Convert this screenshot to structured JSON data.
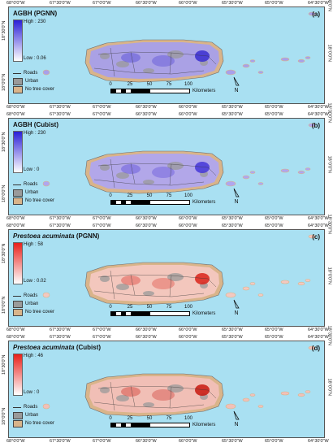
{
  "lon_labels": [
    "68°0'0\"W",
    "67°30'0\"W",
    "67°0'0\"W",
    "66°30'0\"W",
    "66°0'0\"W",
    "65°30'0\"W",
    "65°0'0\"W",
    "64°30'0\"W"
  ],
  "lat_label": "18°30'0\"N",
  "lat_label_2": "18°0'0\"N",
  "legend": {
    "roads": "Roads",
    "urban": "Urban",
    "no_tree": "No tree cover"
  },
  "scale": {
    "ticks": [
      "0",
      "25",
      "50",
      "75",
      "100"
    ],
    "unit": "Kilometers"
  },
  "north_label": "N",
  "colors": {
    "water": "#a9e0f2",
    "urban": "#9a9a9a",
    "no_tree": "#d9b48a",
    "roads": "#333333"
  },
  "panels": [
    {
      "title_main": "AGBH (PGNN)",
      "title_italic": "",
      "letter": "(a)",
      "high": "High : 230",
      "low": "Low : 0.06",
      "ramp_top": "#2a1fd6",
      "ramp_bottom": "#ffffff",
      "fill": "#a8a0ea",
      "hotspot": "#3a2ed0"
    },
    {
      "title_main": "AGBH (Cubist)",
      "title_italic": "",
      "letter": "(b)",
      "high": "High : 230",
      "low": "Low : 0",
      "ramp_top": "#2a1fd6",
      "ramp_bottom": "#ffffff",
      "fill": "#b0a6ee",
      "hotspot": "#4436d8"
    },
    {
      "title_main": " (PGNN)",
      "title_italic": "Prestoea acuminata",
      "letter": "(c)",
      "high": "High : 58",
      "low": "Low : 0.02",
      "ramp_top": "#e8201a",
      "ramp_bottom": "#ffffff",
      "fill": "#f4c8c0",
      "hotspot": "#d9231a"
    },
    {
      "title_main": " (Cubist)",
      "title_italic": "Prestoea acuminata",
      "letter": "(d)",
      "high": "High : 46",
      "low": "Low : 0",
      "ramp_top": "#e8201a",
      "ramp_bottom": "#ffffff",
      "fill": "#f2c0b8",
      "hotspot": "#c8170f"
    }
  ]
}
